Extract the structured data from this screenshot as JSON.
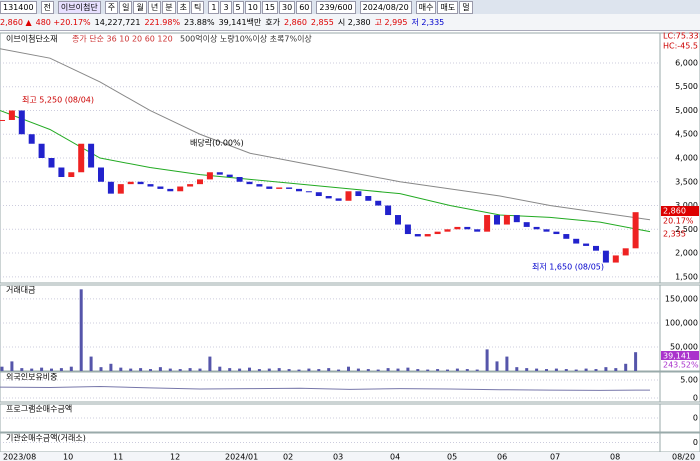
{
  "toolbar": {
    "code": "131400",
    "market": "전",
    "name": "이브이첨단",
    "periods": [
      "주",
      "일",
      "월",
      "년",
      "분",
      "초",
      "틱"
    ],
    "intervals": [
      "1",
      "3",
      "5",
      "10",
      "15",
      "30",
      "60"
    ],
    "count": "239/600",
    "date": "2024/08/20",
    "buttons": [
      "매수",
      "매도",
      "멀"
    ]
  },
  "quote": {
    "price": "2,860 ▲",
    "change": "480 +20.17%",
    "volume": "14,227,721",
    "turnover_rate": "221.98%",
    "ratio": "23.88%",
    "amount": "39,141백만",
    "hoga": "호가",
    "ask": "2,860",
    "bid": "2,855",
    "open": "시 2,380",
    "high": "고 2,995",
    "low": "저 2,335"
  },
  "price_panel": {
    "title": "이브이첨단소재",
    "ma_legend": "종가 단순 36 10 20 60 120",
    "filter_legend": "500억이상 노량10%이상 초록7%이상",
    "closes": [
      4800,
      5000,
      4500,
      4300,
      4000,
      3800,
      3600,
      3700,
      4300,
      3800,
      3500,
      3250,
      3450,
      3500,
      3450,
      3400,
      3350,
      3300,
      3400,
      3450,
      3550,
      3700,
      3650,
      3600,
      3500,
      3450,
      3400,
      3350,
      3380,
      3350,
      3300,
      3280,
      3200,
      3150,
      3100,
      3300,
      3200,
      3100,
      3000,
      2800,
      2600,
      2400,
      2350,
      2400,
      2450,
      2500,
      2550,
      2500,
      2450,
      2800,
      2600,
      2800,
      2650,
      2550,
      2500,
      2450,
      2400,
      2300,
      2200,
      2150,
      2050,
      1800,
      1950,
      2100,
      2860
    ],
    "ma120": [
      6300,
      6100,
      5600,
      5000,
      4500,
      4100,
      3900,
      3700,
      3500,
      3350,
      3200,
      3000,
      2850,
      2700
    ],
    "ma60": [
      5000,
      4600,
      4000,
      3800,
      3650,
      3550,
      3450,
      3350,
      3250,
      3000,
      2800,
      2750,
      2650,
      2450
    ],
    "ylim": [
      1370,
      6630
    ],
    "yticks": [
      {
        "value": 1500,
        "label": "1,500"
      },
      {
        "value": 2000,
        "label": "2,000"
      },
      {
        "value": 2500,
        "label": "2,500"
      },
      {
        "value": 3000,
        "label": "3,000"
      },
      {
        "value": 3500,
        "label": "3,500"
      },
      {
        "value": 4000,
        "label": "4,000"
      },
      {
        "value": 4500,
        "label": "4,500"
      },
      {
        "value": 5000,
        "label": "5,000"
      },
      {
        "value": 5500,
        "label": "5,500"
      },
      {
        "value": 6000,
        "label": "6,000"
      }
    ],
    "high_note": "최고 5,250 (08/04)",
    "dividend_note": "배당락(0.00%)",
    "low_note": "최저 1,650 (08/05)",
    "right_labels": [
      "LC:75.33",
      "HC:-45.5",
      "2,860",
      "20.17%",
      "2,335"
    ]
  },
  "volume_panel": {
    "title": "거래대금",
    "values": [
      9000,
      20000,
      6000,
      5000,
      7000,
      5000,
      6000,
      9000,
      170000,
      30000,
      8000,
      15000,
      7000,
      5000,
      6000,
      4000,
      8000,
      5000,
      4000,
      6000,
      5000,
      30000,
      9000,
      6000,
      5000,
      7000,
      4000,
      5000,
      6000,
      4000,
      3000,
      5000,
      4000,
      6000,
      3000,
      9000,
      5000,
      4000,
      3000,
      6000,
      5000,
      7000,
      4000,
      3000,
      4000,
      3000,
      5000,
      4000,
      3000,
      45000,
      20000,
      30000,
      8000,
      6000,
      5000,
      4000,
      5000,
      4000,
      3000,
      5000,
      4000,
      8000,
      6000,
      15000,
      39141
    ],
    "ylim": [
      0,
      179000
    ],
    "yticks": [
      {
        "value": 50000,
        "label": "50,000"
      },
      {
        "value": 100000,
        "label": "100,000"
      },
      {
        "value": 150000,
        "label": "150,000"
      }
    ],
    "right_labels": [
      "39,141",
      "243.52%"
    ]
  },
  "foreign_panel": {
    "title": "외국인보유비중",
    "values": [
      3.0,
      2.9,
      3.2,
      2.8,
      2.5,
      2.6,
      2.7,
      2.4,
      2.6,
      2.5,
      2.3,
      2.2,
      2.1,
      2.2
    ],
    "ylim": [
      -1.1,
      7.2
    ],
    "yticks": [
      {
        "value": 5,
        "label": "5.00"
      },
      0
    ]
  },
  "program_panel": {
    "title": "프로그램순매수금액",
    "yticks": [
      0
    ]
  },
  "institution_panel": {
    "title": "기관순매수금액(거래소)",
    "yticks": [
      0
    ]
  },
  "dates": [
    "2023/08",
    "10",
    "11",
    "12",
    "2024/01",
    "02",
    "03",
    "04",
    "05",
    "06",
    "07",
    "08",
    "08/20"
  ]
}
